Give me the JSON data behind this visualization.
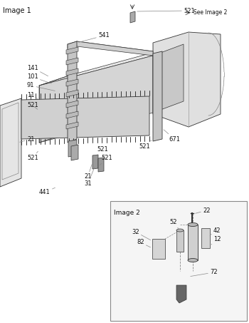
{
  "bg_color": "#ffffff",
  "image1_label": "Image 1",
  "image2_label": "Image 2",
  "see_image2_text": "See Image 2",
  "fig_width": 3.5,
  "fig_height": 4.53,
  "dpi": 100,
  "line_color": "#555555",
  "dark_color": "#333333",
  "gray_color": "#888888",
  "light_gray": "#cccccc",
  "mid_gray": "#aaaaaa",
  "panel_face": "#d8d8d8",
  "door_face": "#e0e0e0",
  "img2_face": "#f5f5f5",
  "label_fontsize": 6.0,
  "img1_label_fontsize": 7.0
}
